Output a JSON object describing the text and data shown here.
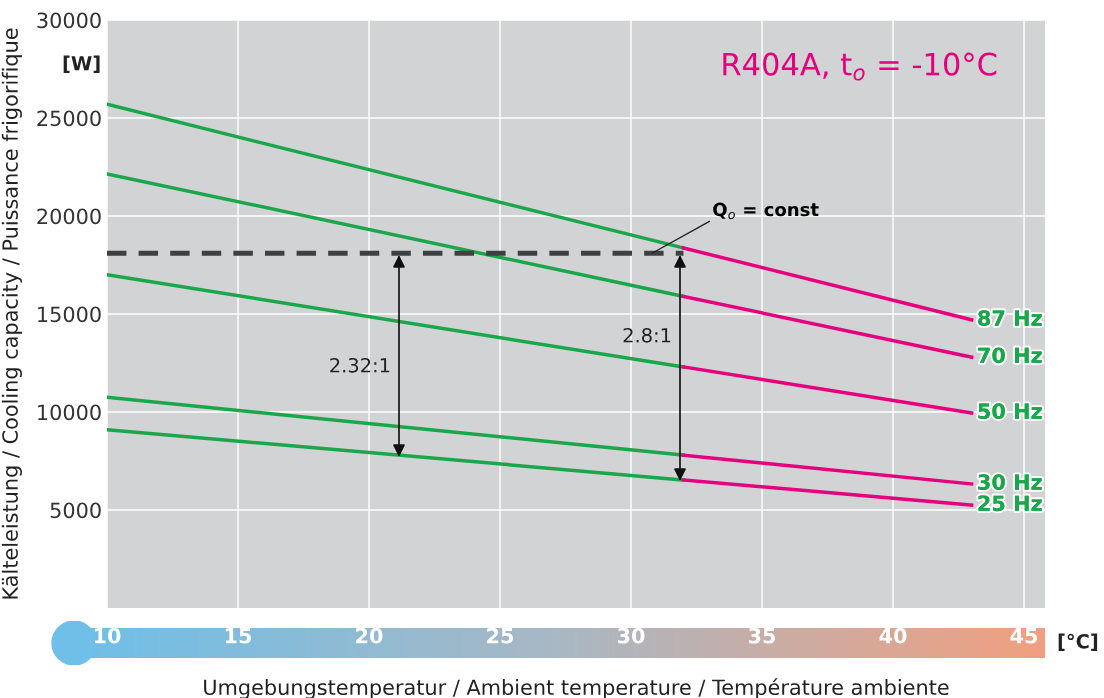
{
  "chart_data": {
    "type": "line",
    "title": "R404A, t$_{o}$ = -10°C",
    "xlabel": "Umgebungstemperatur / Ambient temperature / Température ambiente",
    "ylabel": "Kälteleistung / Cooling capacity / Puissance frigorifique",
    "xlim": [
      10,
      45.8
    ],
    "xticks": [
      10,
      15,
      20,
      25,
      30,
      35,
      40,
      45
    ],
    "ylim": [
      0,
      30000
    ],
    "yticks": [
      5000,
      10000,
      15000,
      20000,
      25000,
      30000
    ],
    "grid": true,
    "marker": "none",
    "line_style": "solid",
    "series": [
      {
        "x": [
          10,
          32
        ],
        "values": [
          25700,
          18370
        ],
        "color": "#1aa64a"
      },
      {
        "name": "87 Hz",
        "x": [
          32,
          43
        ],
        "values": [
          18370,
          14700
        ],
        "color": "#e6007e"
      },
      {
        "x": [
          10,
          32
        ],
        "values": [
          22150,
          15900
        ],
        "color": "#1aa64a"
      },
      {
        "name": "70 Hz",
        "x": [
          32,
          43
        ],
        "values": [
          15900,
          12800
        ],
        "color": "#e6007e"
      },
      {
        "x": [
          10,
          32
        ],
        "values": [
          17000,
          12300
        ],
        "color": "#1aa64a"
      },
      {
        "name": "50 Hz",
        "x": [
          32,
          43
        ],
        "values": [
          12300,
          9950
        ],
        "color": "#e6007e"
      },
      {
        "x": [
          10,
          32
        ],
        "values": [
          10750,
          7800
        ],
        "color": "#1aa64a"
      },
      {
        "name": "30 Hz",
        "x": [
          32,
          43
        ],
        "values": [
          7800,
          6330
        ],
        "color": "#e6007e"
      },
      {
        "x": [
          10,
          32
        ],
        "values": [
          9100,
          6530
        ],
        "color": "#1aa64a"
      },
      {
        "name": "25 Hz",
        "x": [
          32,
          43
        ],
        "values": [
          6530,
          5250
        ],
        "color": "#e6007e"
      },
      {
        "type": "line",
        "x": [
          10,
          32
        ],
        "values": [
          18100,
          18100
        ],
        "color": "#404040",
        "line_style": "dashed"
      }
    ],
    "annotations": [
      "2.32:1",
      "2.8:1",
      {
        "text": "Q$_{o}$ = const",
        "x": 30.8,
        "y": 18100
      },
      "[W]",
      "[°C]"
    ]
  }
}
